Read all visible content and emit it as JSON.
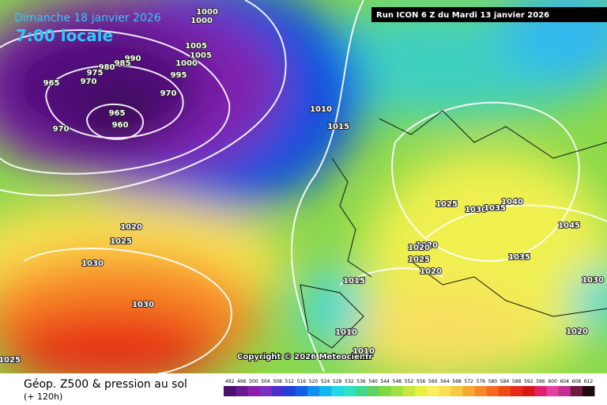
{
  "header": {
    "title": "Dimanche 18 janvier 2026",
    "subtitle": "7:00 locale",
    "run": "Run ICON 6 Z du Mardi 13 janvier 2026"
  },
  "map": {
    "copyright": "Copyright © 2026 Meteociel.fr",
    "pressure_labels": [
      1000,
      1000,
      1005,
      1005,
      1000,
      995,
      990,
      985,
      980,
      975,
      970,
      965,
      970,
      965,
      960,
      970,
      1010,
      1015,
      1020,
      1025,
      1030,
      1030,
      1025,
      1025,
      1030,
      1035,
      1040,
      1045,
      1035,
      1030,
      1020,
      1020,
      1025,
      1020,
      1015,
      1010,
      1010,
      1020
    ]
  },
  "footer": {
    "title": "Géop. Z500 & pression au sol",
    "subtitle": "(+ 120h)"
  },
  "legend": {
    "values": [
      492,
      496,
      500,
      504,
      508,
      512,
      516,
      520,
      524,
      528,
      532,
      536,
      540,
      544,
      548,
      552,
      556,
      560,
      564,
      568,
      572,
      576,
      580,
      584,
      588,
      592,
      596,
      600,
      604,
      608,
      612
    ],
    "colors": [
      "#4b0f6e",
      "#6a1890",
      "#8a1fa8",
      "#7a30c0",
      "#4a30c8",
      "#2040d8",
      "#1060e8",
      "#1090f0",
      "#10b8f0",
      "#20d8e8",
      "#30e0c0",
      "#40d890",
      "#60d060",
      "#80d840",
      "#a0e040",
      "#c8e840",
      "#e8f040",
      "#f8f060",
      "#f8e050",
      "#f8c840",
      "#f8a830",
      "#f88828",
      "#f86820",
      "#f04818",
      "#e82818",
      "#d81818",
      "#e0206c",
      "#e040a0",
      "#c03090",
      "#701840",
      "#200810"
    ]
  }
}
